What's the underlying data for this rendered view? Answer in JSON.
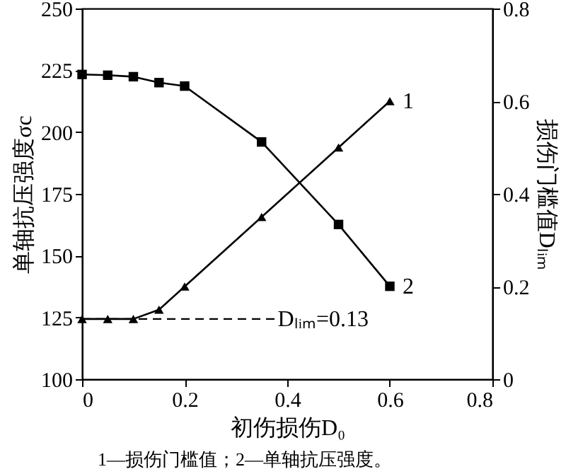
{
  "chart_data": {
    "type": "line",
    "xlabel": "初伤损伤D₀",
    "ylabel": "单轴抗压强度σc",
    "y2label": "损伤门槛值Dₗᵢₘ",
    "xlim": [
      0,
      0.8
    ],
    "xticks": [
      0,
      0.2,
      0.4,
      0.6,
      0.8
    ],
    "ylim": [
      100,
      250
    ],
    "yticks": [
      100,
      125,
      150,
      175,
      200,
      225,
      250
    ],
    "y2lim": [
      0,
      0.8
    ],
    "y2ticks": [
      0,
      0.2,
      0.4,
      0.6,
      0.8
    ],
    "x": [
      0,
      0.05,
      0.1,
      0.15,
      0.2,
      0.35,
      0.5,
      0.6
    ],
    "series": [
      {
        "name": "1",
        "color": "#000000",
        "axis": "y2",
        "marker": "triangle",
        "values": [
          0.13,
          0.13,
          0.13,
          0.15,
          0.2,
          0.35,
          0.5,
          0.6
        ]
      },
      {
        "name": "2",
        "color": "#000000",
        "axis": "y",
        "marker": "square",
        "values": [
          223.3,
          223,
          222.4,
          220,
          218.6,
          196,
          162.6,
          137.6
        ]
      }
    ],
    "ref_lines": [
      {
        "axis": "y2",
        "value": 0.13,
        "label": "Dₗᵢₘ=0.13",
        "color": "#000000",
        "line_style": "dashed"
      }
    ],
    "annotations": [
      "1—损伤门槛值；2—单轴抗压强度。"
    ],
    "grid": false,
    "line_style": "solid"
  }
}
